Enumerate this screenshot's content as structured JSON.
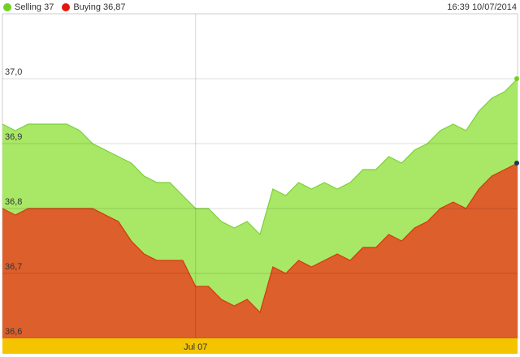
{
  "legend": {
    "items": [
      {
        "label": "Selling 37",
        "color": "#6fd21f"
      },
      {
        "label": "Buying 36,87",
        "color": "#e8150d"
      }
    ]
  },
  "timestamp": "16:39 10/07/2014",
  "chart_data": {
    "type": "area",
    "ylim": [
      36.6,
      37.1
    ],
    "yticks": [
      36.6,
      36.7,
      36.8,
      36.9,
      37.0
    ],
    "ytick_labels": [
      "36,6",
      "36,7",
      "36,8",
      "36,9",
      "37,0"
    ],
    "xtick_labels": [
      {
        "label": "Jul 07",
        "index": 15
      }
    ],
    "grid": true,
    "legend_position": "top-left",
    "series": [
      {
        "name": "Selling",
        "fill": "#a8e866",
        "line": "#7ccf3a",
        "values": [
          36.93,
          36.92,
          36.93,
          36.93,
          36.93,
          36.93,
          36.92,
          36.9,
          36.89,
          36.88,
          36.87,
          36.85,
          36.84,
          36.84,
          36.82,
          36.8,
          36.8,
          36.78,
          36.77,
          36.78,
          36.76,
          36.83,
          36.82,
          36.84,
          36.83,
          36.84,
          36.83,
          36.84,
          36.86,
          36.86,
          36.88,
          36.87,
          36.89,
          36.9,
          36.92,
          36.93,
          36.92,
          36.95,
          36.97,
          36.98,
          37.0
        ]
      },
      {
        "name": "Buying",
        "fill": "#dd5f2b",
        "line": "#d13a10",
        "values": [
          36.8,
          36.79,
          36.8,
          36.8,
          36.8,
          36.8,
          36.8,
          36.8,
          36.79,
          36.78,
          36.75,
          36.73,
          36.72,
          36.72,
          36.72,
          36.68,
          36.68,
          36.66,
          36.65,
          36.66,
          36.64,
          36.71,
          36.7,
          36.72,
          36.71,
          36.72,
          36.73,
          36.72,
          36.74,
          36.74,
          36.76,
          36.75,
          36.77,
          36.78,
          36.8,
          36.81,
          36.8,
          36.83,
          36.85,
          36.86,
          36.87
        ]
      }
    ],
    "navigator_color": "#f5c400"
  }
}
